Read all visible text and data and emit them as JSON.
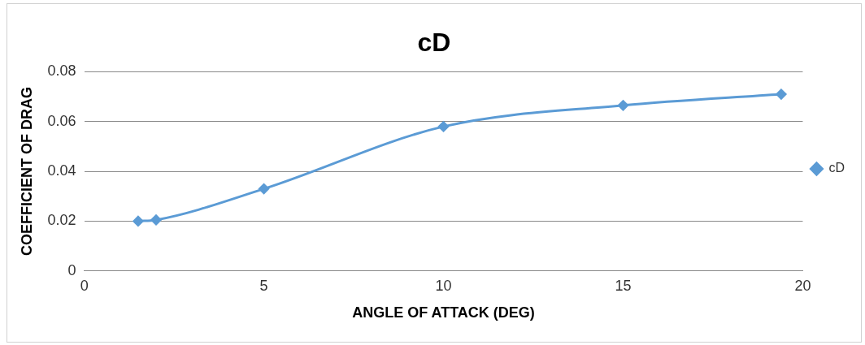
{
  "chart_data": {
    "type": "line",
    "title": "cD",
    "xlabel": "ANGLE OF ATTACK (DEG)",
    "ylabel": "COEFFICIENT OF DRAG",
    "series": [
      {
        "name": "cD",
        "color": "#5b9bd5",
        "x": [
          1.5,
          2,
          5,
          10,
          15,
          19.4
        ],
        "values": [
          0.02,
          0.0205,
          0.033,
          0.058,
          0.0665,
          0.071
        ]
      }
    ],
    "xlim": [
      0,
      20
    ],
    "xticks": [
      0,
      5,
      10,
      15,
      20
    ],
    "ylim": [
      0,
      0.08
    ],
    "yticks": [
      0,
      0.02,
      0.04,
      0.06,
      0.08
    ],
    "grid": "y",
    "legend": "right",
    "marker": "diamond",
    "line_style": "solid"
  }
}
